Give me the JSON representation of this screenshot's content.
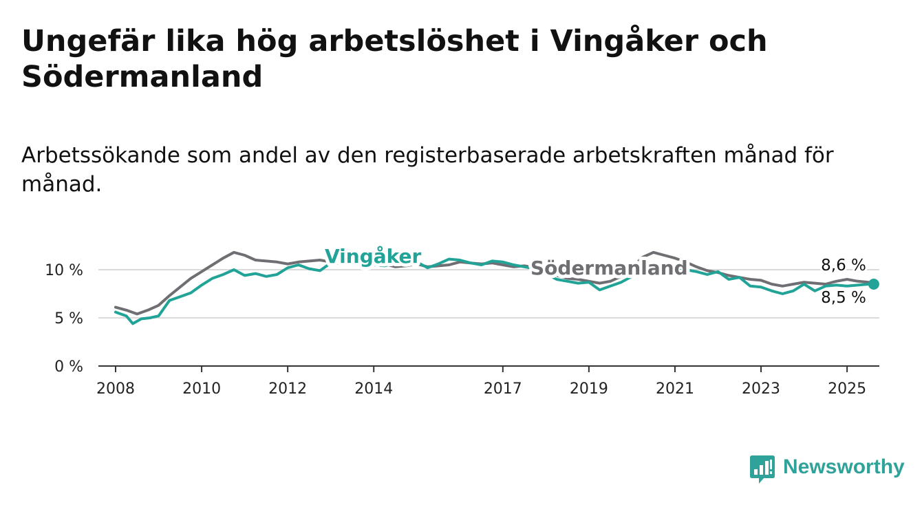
{
  "title": "Ungefär lika hög arbetslöshet i Vingåker och Södermanland",
  "subtitle": "Arbetssökande som andel av den registerbaserade arbetskraften månad för månad.",
  "brand": {
    "name": "Newsworthy",
    "color": "#2fa39a",
    "icon": "bar-chart-icon"
  },
  "chart_data": {
    "type": "line",
    "ylim": [
      0,
      13
    ],
    "xlim": [
      2007.6,
      2025.75
    ],
    "yticks": [
      0,
      5,
      10
    ],
    "ytick_labels": [
      "0 %",
      "5 %",
      "10 %"
    ],
    "xticks": [
      2008,
      2010,
      2012,
      2014,
      2017,
      2019,
      2021,
      2023,
      2025
    ],
    "xtick_labels": [
      "2008",
      "2010",
      "2012",
      "2014",
      "2017",
      "2019",
      "2021",
      "2023",
      "2025"
    ],
    "grid": true,
    "series": [
      {
        "name": "Södermanland",
        "color": "#6f6e73",
        "end_label": "8,6 %",
        "points": [
          [
            2008.0,
            6.1
          ],
          [
            2008.25,
            5.8
          ],
          [
            2008.5,
            5.4
          ],
          [
            2008.75,
            5.8
          ],
          [
            2009.0,
            6.3
          ],
          [
            2009.25,
            7.3
          ],
          [
            2009.5,
            8.2
          ],
          [
            2009.75,
            9.1
          ],
          [
            2010.0,
            9.8
          ],
          [
            2010.25,
            10.5
          ],
          [
            2010.5,
            11.2
          ],
          [
            2010.75,
            11.8
          ],
          [
            2011.0,
            11.5
          ],
          [
            2011.25,
            11.0
          ],
          [
            2011.5,
            10.9
          ],
          [
            2011.75,
            10.8
          ],
          [
            2012.0,
            10.6
          ],
          [
            2012.25,
            10.8
          ],
          [
            2012.5,
            10.9
          ],
          [
            2012.75,
            11.0
          ],
          [
            2013.0,
            10.8
          ],
          [
            2013.25,
            10.6
          ],
          [
            2013.5,
            10.7
          ],
          [
            2013.75,
            10.6
          ],
          [
            2014.0,
            10.5
          ],
          [
            2014.25,
            10.6
          ],
          [
            2014.5,
            10.3
          ],
          [
            2014.75,
            10.4
          ],
          [
            2015.0,
            10.6
          ],
          [
            2015.25,
            10.3
          ],
          [
            2015.5,
            10.4
          ],
          [
            2015.75,
            10.5
          ],
          [
            2016.0,
            10.8
          ],
          [
            2016.25,
            10.7
          ],
          [
            2016.5,
            10.6
          ],
          [
            2016.75,
            10.7
          ],
          [
            2017.0,
            10.5
          ],
          [
            2017.25,
            10.3
          ],
          [
            2017.5,
            10.4
          ],
          [
            2017.75,
            10.2
          ],
          [
            2018.0,
            9.8
          ],
          [
            2018.25,
            9.4
          ],
          [
            2018.5,
            9.1
          ],
          [
            2018.75,
            9.0
          ],
          [
            2019.0,
            8.8
          ],
          [
            2019.25,
            8.6
          ],
          [
            2019.5,
            8.8
          ],
          [
            2019.75,
            9.3
          ],
          [
            2020.0,
            10.2
          ],
          [
            2020.25,
            11.3
          ],
          [
            2020.5,
            11.8
          ],
          [
            2020.75,
            11.5
          ],
          [
            2021.0,
            11.2
          ],
          [
            2021.25,
            10.8
          ],
          [
            2021.5,
            10.3
          ],
          [
            2021.75,
            9.9
          ],
          [
            2022.0,
            9.7
          ],
          [
            2022.25,
            9.4
          ],
          [
            2022.5,
            9.2
          ],
          [
            2022.75,
            9.0
          ],
          [
            2023.0,
            8.9
          ],
          [
            2023.25,
            8.5
          ],
          [
            2023.5,
            8.3
          ],
          [
            2023.75,
            8.5
          ],
          [
            2024.0,
            8.7
          ],
          [
            2024.25,
            8.6
          ],
          [
            2024.5,
            8.5
          ],
          [
            2024.75,
            8.8
          ],
          [
            2025.0,
            9.0
          ],
          [
            2025.25,
            8.8
          ],
          [
            2025.5,
            8.7
          ],
          [
            2025.62,
            8.6
          ]
        ]
      },
      {
        "name": "Vingåker",
        "color": "#21a497",
        "end_label": "8,5 %",
        "points": [
          [
            2008.0,
            5.6
          ],
          [
            2008.25,
            5.2
          ],
          [
            2008.4,
            4.4
          ],
          [
            2008.6,
            4.9
          ],
          [
            2008.8,
            5.0
          ],
          [
            2009.0,
            5.2
          ],
          [
            2009.25,
            6.8
          ],
          [
            2009.5,
            7.2
          ],
          [
            2009.75,
            7.6
          ],
          [
            2010.0,
            8.4
          ],
          [
            2010.25,
            9.1
          ],
          [
            2010.5,
            9.5
          ],
          [
            2010.75,
            10.0
          ],
          [
            2011.0,
            9.4
          ],
          [
            2011.25,
            9.6
          ],
          [
            2011.5,
            9.3
          ],
          [
            2011.75,
            9.5
          ],
          [
            2012.0,
            10.2
          ],
          [
            2012.25,
            10.5
          ],
          [
            2012.5,
            10.1
          ],
          [
            2012.75,
            9.9
          ],
          [
            2013.0,
            10.7
          ],
          [
            2013.25,
            10.9
          ],
          [
            2013.5,
            10.6
          ],
          [
            2013.75,
            10.8
          ],
          [
            2014.0,
            10.5
          ],
          [
            2014.25,
            10.4
          ],
          [
            2014.5,
            10.7
          ],
          [
            2014.75,
            10.5
          ],
          [
            2015.0,
            10.8
          ],
          [
            2015.25,
            10.2
          ],
          [
            2015.5,
            10.6
          ],
          [
            2015.75,
            11.1
          ],
          [
            2016.0,
            11.0
          ],
          [
            2016.25,
            10.7
          ],
          [
            2016.5,
            10.5
          ],
          [
            2016.75,
            10.9
          ],
          [
            2017.0,
            10.8
          ],
          [
            2017.25,
            10.5
          ],
          [
            2017.5,
            10.3
          ],
          [
            2017.75,
            10.1
          ],
          [
            2018.0,
            9.6
          ],
          [
            2018.25,
            9.0
          ],
          [
            2018.5,
            8.8
          ],
          [
            2018.75,
            8.6
          ],
          [
            2019.0,
            8.7
          ],
          [
            2019.25,
            7.9
          ],
          [
            2019.5,
            8.3
          ],
          [
            2019.75,
            8.7
          ],
          [
            2020.0,
            9.3
          ],
          [
            2020.25,
            10.0
          ],
          [
            2020.5,
            10.2
          ],
          [
            2020.75,
            10.3
          ],
          [
            2021.0,
            10.1
          ],
          [
            2021.25,
            10.0
          ],
          [
            2021.5,
            9.8
          ],
          [
            2021.75,
            9.5
          ],
          [
            2022.0,
            9.8
          ],
          [
            2022.25,
            9.0
          ],
          [
            2022.5,
            9.2
          ],
          [
            2022.75,
            8.3
          ],
          [
            2023.0,
            8.2
          ],
          [
            2023.25,
            7.8
          ],
          [
            2023.5,
            7.5
          ],
          [
            2023.75,
            7.8
          ],
          [
            2024.0,
            8.5
          ],
          [
            2024.25,
            7.8
          ],
          [
            2024.5,
            8.3
          ],
          [
            2024.75,
            8.4
          ],
          [
            2025.0,
            8.3
          ],
          [
            2025.25,
            8.4
          ],
          [
            2025.5,
            8.5
          ],
          [
            2025.62,
            8.5
          ]
        ]
      }
    ]
  }
}
